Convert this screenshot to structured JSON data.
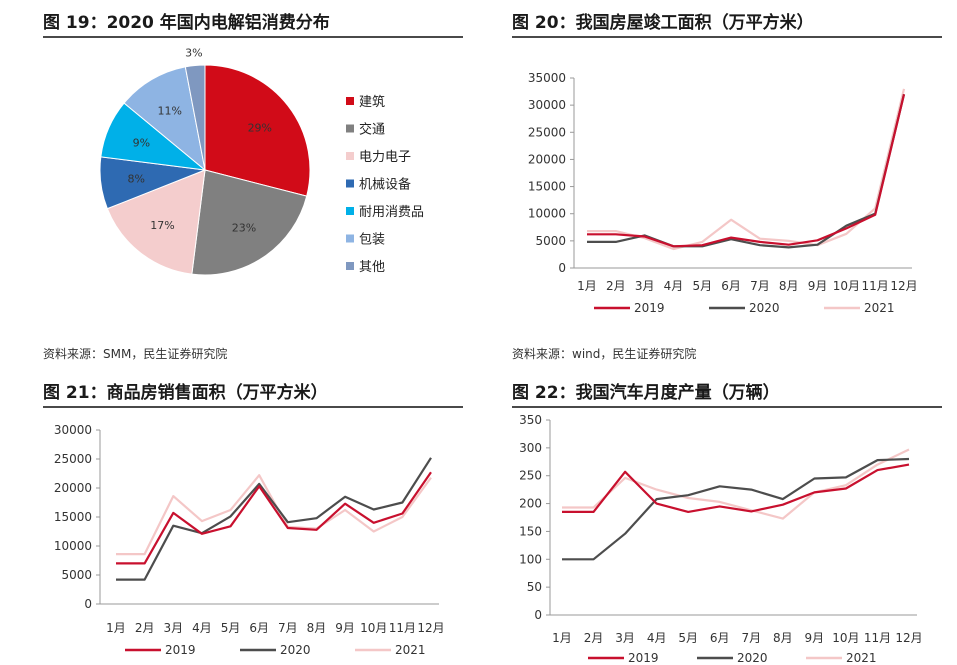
{
  "panels": [
    {
      "title": "图 19：2020 年国内电解铝消费分布",
      "source": "资料来源：SMM，民生证券研究院"
    },
    {
      "title": "图 20：我国房屋竣工面积（万平方米）",
      "source": "资料来源：wind，民生证券研究院"
    },
    {
      "title": "图 21：商品房销售面积（万平方米）",
      "source": ""
    },
    {
      "title": "图 22：我国汽车月度产量（万辆）",
      "source": ""
    }
  ],
  "colors": {
    "2019": "#c8102e",
    "2020": "#4d4d4d",
    "2021": "#f4c7c7"
  },
  "chart_data": [
    {
      "type": "pie",
      "title": "2020 年国内电解铝消费分布",
      "labels": [
        "建筑",
        "交通",
        "电力电子",
        "机械设备",
        "耐用消费品",
        "包装",
        "其他"
      ],
      "values": [
        29,
        23,
        17,
        8,
        9,
        11,
        3
      ],
      "value_labels": [
        "29%",
        "23%",
        "17%",
        "8%",
        "9%",
        "11%",
        "3%"
      ],
      "colors": [
        "#d10b18",
        "#808080",
        "#f4cdcd",
        "#2e6ab2",
        "#00b0e8",
        "#8eb4e3",
        "#7f98c0"
      ]
    },
    {
      "type": "line",
      "title": "我国房屋竣工面积（万平方米）",
      "categories": [
        "1月",
        "2月",
        "3月",
        "4月",
        "5月",
        "6月",
        "7月",
        "8月",
        "9月",
        "10月",
        "11月",
        "12月"
      ],
      "ylim": [
        0,
        35000
      ],
      "yticks": [
        "0",
        "5000",
        "10000",
        "15000",
        "20000",
        "25000",
        "30000",
        "35000"
      ],
      "series": [
        {
          "name": "2019",
          "values": [
            6200,
            6200,
            5800,
            4000,
            4200,
            5600,
            4800,
            4300,
            5100,
            7300,
            9800,
            32000
          ]
        },
        {
          "name": "2020",
          "values": [
            4800,
            4800,
            6000,
            4000,
            4000,
            5300,
            4200,
            3800,
            4300,
            7800,
            10000,
            32000
          ]
        },
        {
          "name": "2021",
          "values": [
            6800,
            6800,
            5500,
            3500,
            4800,
            8900,
            5400,
            5000,
            4200,
            6300,
            11000,
            33000
          ]
        }
      ]
    },
    {
      "type": "line",
      "title": "商品房销售面积（万平方米）",
      "categories": [
        "1月",
        "2月",
        "3月",
        "4月",
        "5月",
        "6月",
        "7月",
        "8月",
        "9月",
        "10月",
        "11月",
        "12月"
      ],
      "ylim": [
        0,
        30000
      ],
      "yticks": [
        "0",
        "5000",
        "10000",
        "15000",
        "20000",
        "25000",
        "30000"
      ],
      "series": [
        {
          "name": "2019",
          "values": [
            7000,
            7000,
            15700,
            12100,
            13400,
            20300,
            13100,
            12800,
            17300,
            14000,
            15600,
            22700
          ]
        },
        {
          "name": "2020",
          "values": [
            4200,
            4200,
            13500,
            12200,
            15100,
            20700,
            14100,
            14800,
            18500,
            16300,
            17500,
            25200
          ]
        },
        {
          "name": "2021",
          "values": [
            8600,
            8600,
            18600,
            14300,
            16200,
            22200,
            13300,
            13000,
            16200,
            12500,
            15000,
            21800
          ]
        }
      ]
    },
    {
      "type": "line",
      "title": "我国汽车月度产量（万辆）",
      "categories": [
        "1月",
        "2月",
        "3月",
        "4月",
        "5月",
        "6月",
        "7月",
        "8月",
        "9月",
        "10月",
        "11月",
        "12月"
      ],
      "ylim": [
        0,
        350
      ],
      "yticks": [
        "0",
        "50",
        "100",
        "150",
        "200",
        "250",
        "300",
        "350"
      ],
      "series": [
        {
          "name": "2019",
          "values": [
            185,
            185,
            257,
            200,
            185,
            195,
            186,
            198,
            220,
            227,
            260,
            270
          ]
        },
        {
          "name": "2020",
          "values": [
            100,
            100,
            146,
            208,
            215,
            231,
            225,
            208,
            245,
            247,
            278,
            280
          ]
        },
        {
          "name": "2021",
          "values": [
            193,
            193,
            246,
            225,
            210,
            203,
            188,
            173,
            220,
            233,
            270,
            297
          ]
        }
      ]
    }
  ]
}
